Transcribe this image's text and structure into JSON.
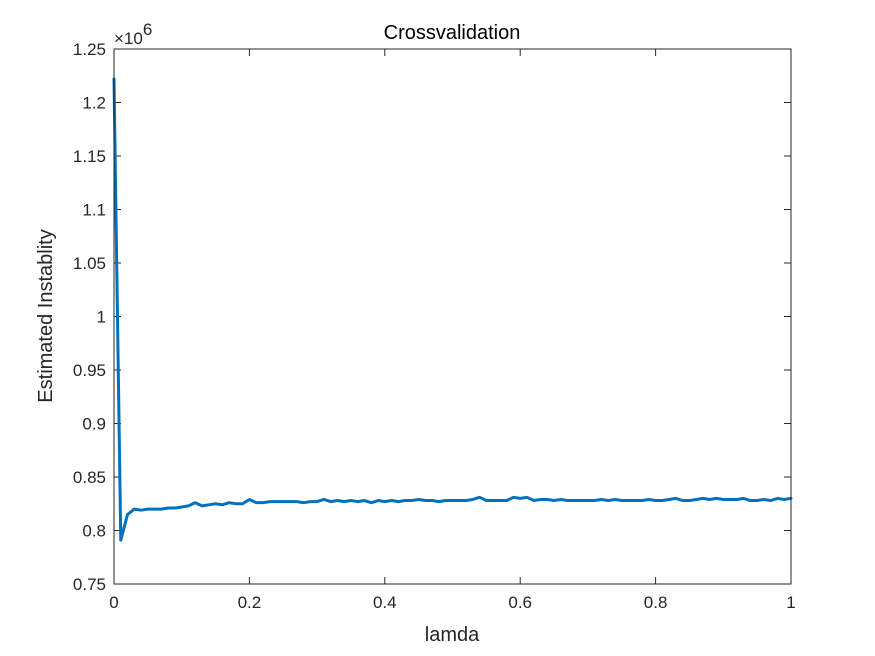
{
  "chart_data": {
    "type": "line",
    "title": "Crossvalidation",
    "xlabel": "lamda",
    "ylabel": "Estimated Instablity",
    "exponent_label": {
      "base": "×10",
      "power": "6"
    },
    "xlim": [
      0,
      1
    ],
    "ylim": [
      0.75,
      1.25
    ],
    "x_ticks": [
      "0",
      "0.2",
      "0.4",
      "0.6",
      "0.8",
      "1"
    ],
    "y_ticks": [
      "0.75",
      "0.8",
      "0.85",
      "0.9",
      "0.95",
      "1",
      "1.05",
      "1.1",
      "1.15",
      "1.2",
      "1.25"
    ],
    "grid": false,
    "line_color": "#0072BD",
    "series": [
      {
        "x": [
          0,
          0.01,
          0.02,
          0.03,
          0.04,
          0.05,
          0.06,
          0.07,
          0.08,
          0.09,
          0.1,
          0.11,
          0.12,
          0.13,
          0.14,
          0.15,
          0.16,
          0.17,
          0.18,
          0.19,
          0.2,
          0.21,
          0.22,
          0.23,
          0.24,
          0.25,
          0.26,
          0.27,
          0.28,
          0.29,
          0.3,
          0.31,
          0.32,
          0.33,
          0.34,
          0.35,
          0.36,
          0.37,
          0.38,
          0.39,
          0.4,
          0.41,
          0.42,
          0.43,
          0.44,
          0.45,
          0.46,
          0.47,
          0.48,
          0.49,
          0.5,
          0.51,
          0.52,
          0.53,
          0.54,
          0.55,
          0.56,
          0.57,
          0.58,
          0.59,
          0.6,
          0.61,
          0.62,
          0.63,
          0.64,
          0.65,
          0.66,
          0.67,
          0.68,
          0.69,
          0.7,
          0.71,
          0.72,
          0.73,
          0.74,
          0.75,
          0.76,
          0.77,
          0.78,
          0.79,
          0.8,
          0.81,
          0.82,
          0.83,
          0.84,
          0.85,
          0.86,
          0.87,
          0.88,
          0.89,
          0.9,
          0.91,
          0.92,
          0.93,
          0.94,
          0.95,
          0.96,
          0.97,
          0.98,
          0.99,
          1
        ],
        "y": [
          1.222,
          0.791,
          0.815,
          0.82,
          0.819,
          0.82,
          0.82,
          0.82,
          0.821,
          0.821,
          0.822,
          0.823,
          0.826,
          0.823,
          0.824,
          0.825,
          0.824,
          0.826,
          0.825,
          0.825,
          0.829,
          0.826,
          0.826,
          0.827,
          0.827,
          0.827,
          0.827,
          0.827,
          0.826,
          0.827,
          0.827,
          0.829,
          0.827,
          0.828,
          0.827,
          0.828,
          0.827,
          0.828,
          0.826,
          0.828,
          0.827,
          0.828,
          0.827,
          0.828,
          0.828,
          0.829,
          0.828,
          0.828,
          0.827,
          0.828,
          0.828,
          0.828,
          0.828,
          0.829,
          0.831,
          0.828,
          0.828,
          0.828,
          0.828,
          0.831,
          0.83,
          0.831,
          0.828,
          0.829,
          0.829,
          0.828,
          0.829,
          0.828,
          0.828,
          0.828,
          0.828,
          0.828,
          0.829,
          0.828,
          0.829,
          0.828,
          0.828,
          0.828,
          0.828,
          0.829,
          0.828,
          0.828,
          0.829,
          0.83,
          0.828,
          0.828,
          0.829,
          0.83,
          0.829,
          0.83,
          0.829,
          0.829,
          0.829,
          0.83,
          0.828,
          0.828,
          0.829,
          0.828,
          0.83,
          0.829,
          0.83
        ]
      }
    ]
  }
}
